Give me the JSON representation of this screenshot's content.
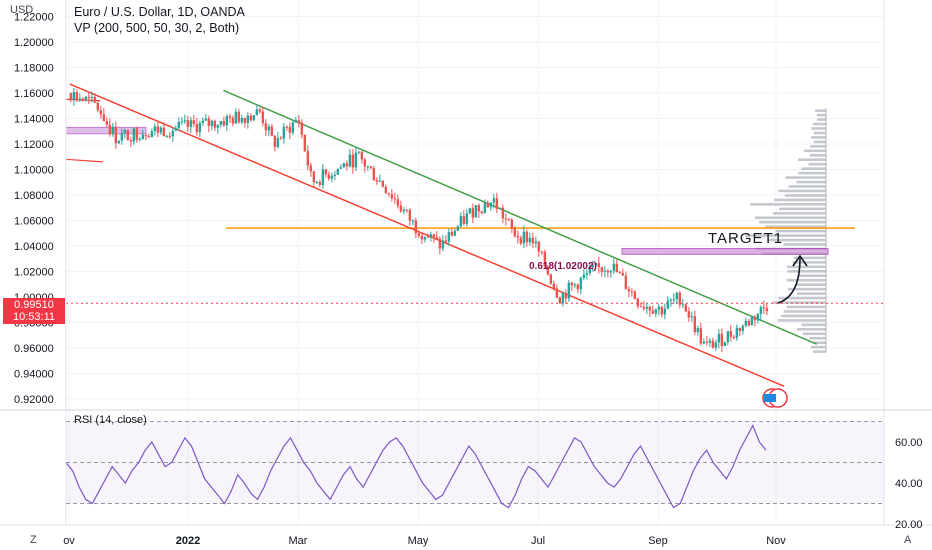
{
  "header": {
    "title": "Euro / U.S. Dollar, 1D, OANDA",
    "indicator": "VP (200, 500, 50, 30, 2, Both)",
    "currency": "USD"
  },
  "rsi": {
    "label": "RSI (14, close)"
  },
  "price_badge": {
    "price": "0.99510",
    "countdown": "10:53:11"
  },
  "annotations": {
    "target": "TARGET1",
    "fib_label": "0.618(1.02002)"
  },
  "corner": {
    "left": "Z",
    "right": "A"
  },
  "colors": {
    "up": "#26a69a",
    "down": "#ef5350",
    "upper_channel": "#43a047",
    "lower_channel": "#f44336",
    "target_line": "#ff9800",
    "rsi": "#7e57c2",
    "vp": "#b2b5be",
    "zone": "#ce93d8",
    "price_line": "#f23645"
  },
  "chart_data": [
    {
      "type": "candlestick",
      "title": "Euro / U.S. Dollar, 1D, OANDA",
      "x_ticks": [
        "ov",
        "2022",
        "Mar",
        "May",
        "Jul",
        "Sep",
        "Nov"
      ],
      "y_ticks": [
        "1.22000",
        "1.20000",
        "1.18000",
        "1.16000",
        "1.14000",
        "1.12000",
        "1.10000",
        "1.08000",
        "1.06000",
        "1.04000",
        "1.02000",
        "1.00000",
        "0.98000",
        "0.96000",
        "0.94000",
        "0.92000"
      ],
      "ylim": [
        0.912,
        1.222
      ],
      "current_price": 0.9951,
      "target_level": 1.054,
      "target_zone": [
        1.0335,
        1.038
      ],
      "left_zone": [
        1.128,
        1.133
      ],
      "upper_channel": [
        [
          "2022-01-20",
          1.162
        ],
        [
          "2022-11-25",
          0.963
        ]
      ],
      "lower_channel": [
        [
          "2021-11-01",
          1.167
        ],
        [
          "2022-11-08",
          0.93
        ]
      ],
      "closes": [
        [
          "2021-11-01",
          1.16
        ],
        [
          "2021-11-15",
          1.15
        ],
        [
          "2021-11-25",
          1.125
        ],
        [
          "2021-12-10",
          1.13
        ],
        [
          "2021-12-25",
          1.132
        ],
        [
          "2022-01-10",
          1.135
        ],
        [
          "2022-01-25",
          1.14
        ],
        [
          "2022-02-08",
          1.145
        ],
        [
          "2022-02-15",
          1.12
        ],
        [
          "2022-02-28",
          1.14
        ],
        [
          "2022-03-07",
          1.09
        ],
        [
          "2022-03-20",
          1.1
        ],
        [
          "2022-03-31",
          1.11
        ],
        [
          "2022-04-15",
          1.085
        ],
        [
          "2022-04-30",
          1.055
        ],
        [
          "2022-05-13",
          1.04
        ],
        [
          "2022-05-31",
          1.07
        ],
        [
          "2022-06-10",
          1.075
        ],
        [
          "2022-06-20",
          1.05
        ],
        [
          "2022-06-30",
          1.045
        ],
        [
          "2022-07-14",
          1.0
        ],
        [
          "2022-07-31",
          1.02
        ],
        [
          "2022-08-10",
          1.025
        ],
        [
          "2022-08-25",
          0.995
        ],
        [
          "2022-09-05",
          0.99
        ],
        [
          "2022-09-15",
          1.0
        ],
        [
          "2022-09-28",
          0.96
        ],
        [
          "2022-10-10",
          0.97
        ],
        [
          "2022-10-20",
          0.98
        ],
        [
          "2022-10-31",
          0.995
        ]
      ]
    },
    {
      "type": "line",
      "title": "RSI (14, close)",
      "y_ticks": [
        "60.00",
        "40.00",
        "20.00"
      ],
      "ylim": [
        16,
        78
      ],
      "bands": [
        70,
        50,
        30
      ],
      "series": [
        {
          "values": [
            50,
            46,
            38,
            32,
            30,
            36,
            42,
            48,
            44,
            40,
            46,
            50,
            56,
            60,
            54,
            48,
            50,
            56,
            62,
            58,
            50,
            42,
            38,
            34,
            30,
            36,
            44,
            40,
            35,
            32,
            38,
            46,
            52,
            58,
            62,
            56,
            50,
            46,
            40,
            36,
            32,
            38,
            44,
            48,
            42,
            38,
            44,
            50,
            56,
            60,
            62,
            58,
            52,
            46,
            40,
            36,
            32,
            34,
            40,
            46,
            52,
            58,
            54,
            48,
            42,
            36,
            30,
            28,
            34,
            42,
            48,
            46,
            42,
            38,
            44,
            50,
            56,
            62,
            60,
            54,
            48,
            44,
            40,
            38,
            42,
            48,
            54,
            58,
            52,
            46,
            40,
            34,
            28,
            30,
            38,
            46,
            52,
            56,
            50,
            46,
            42,
            48,
            56,
            62,
            68,
            60,
            56
          ]
        }
      ]
    }
  ]
}
